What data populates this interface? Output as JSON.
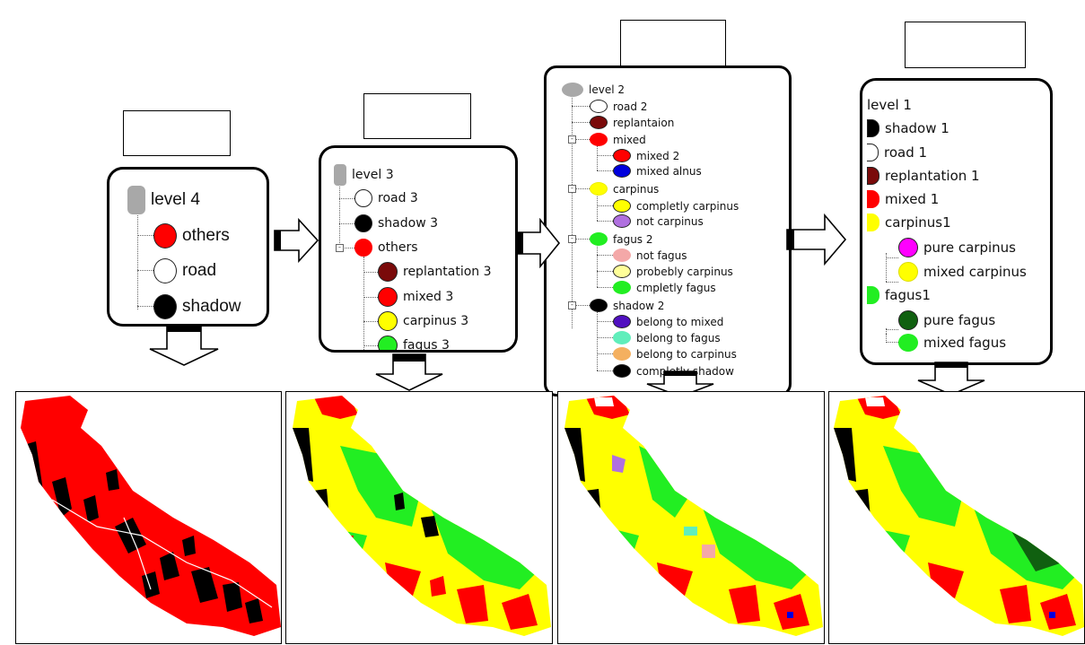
{
  "level4": {
    "root": "level 4",
    "items": [
      "others",
      "road",
      "shadow"
    ]
  },
  "level3": {
    "root": "level 3",
    "items": [
      "road 3",
      "shadow 3"
    ],
    "group": "others",
    "children": [
      "replantation 3",
      "mixed 3",
      "carpinus 3",
      "fagus 3"
    ]
  },
  "level2": {
    "root": "level 2",
    "items": [
      "road 2",
      "replantaion"
    ],
    "groups": [
      {
        "label": "mixed",
        "children": [
          "mixed 2",
          "mixed alnus"
        ]
      },
      {
        "label": "carpinus",
        "children": [
          "completly carpinus",
          "not carpinus"
        ]
      },
      {
        "label": "fagus 2",
        "children": [
          "not fagus",
          "probebly carpinus",
          "cmpletly fagus"
        ]
      },
      {
        "label": "shadow 2",
        "children": [
          "belong to mixed",
          "belong to fagus",
          "belong to carpinus",
          "completly shadow"
        ]
      }
    ]
  },
  "level1": {
    "root": "level 1",
    "items": [
      "shadow 1",
      "road 1",
      "replantation 1",
      "mixed 1"
    ],
    "group1": "carpinus1",
    "group1_children": [
      "pure carpinus",
      "mixed carpinus"
    ],
    "group2": "fagus1",
    "group2_children": [
      "pure fagus",
      "mixed fagus"
    ]
  },
  "colors": {
    "red": "#ff0000",
    "black": "#000000",
    "yellow": "#ffff00",
    "green": "#22ee22",
    "darkred": "#7a0a0a",
    "blue": "#0000dd",
    "violet": "#b070e0",
    "pink": "#f4a8a8",
    "paleyellow": "#ffff99",
    "indigo": "#5010c0",
    "aqua": "#60eebb",
    "orange": "#f4b060",
    "magenta": "#ff00ff",
    "darkgreen": "#106010"
  }
}
